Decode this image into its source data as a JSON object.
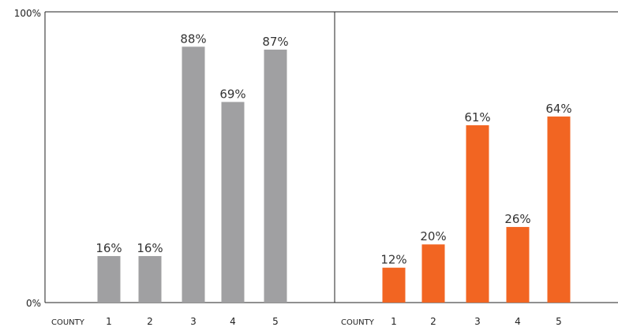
{
  "chart_data": {
    "type": "bar",
    "ylim": [
      0,
      100
    ],
    "y_ticks": [
      "0%",
      "100%"
    ],
    "x_axis_prefix": "COUNTY",
    "panels": [
      {
        "categories": [
          "1",
          "2",
          "3",
          "4",
          "5"
        ],
        "values": [
          16,
          16,
          88,
          69,
          87
        ],
        "labels": [
          "16%",
          "16%",
          "88%",
          "69%",
          "87%"
        ],
        "color": "#a0a0a2"
      },
      {
        "categories": [
          "1",
          "2",
          "3",
          "4",
          "5"
        ],
        "values": [
          12,
          20,
          61,
          26,
          64
        ],
        "labels": [
          "12%",
          "20%",
          "61%",
          "26%",
          "64%"
        ],
        "color": "#f26522"
      }
    ]
  }
}
